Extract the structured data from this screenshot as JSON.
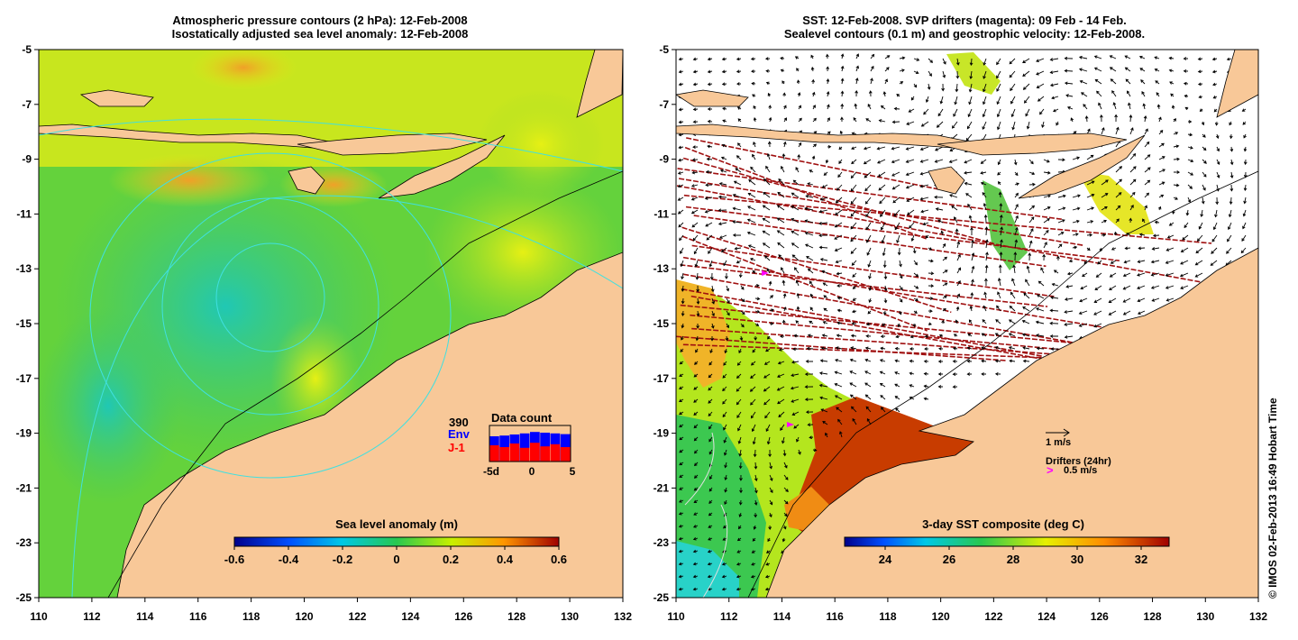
{
  "left_panel": {
    "title_line1": "Atmospheric pressure contours (2 hPa): 12-Feb-2008",
    "title_line2": "Isostatically adjusted sea level anomaly: 12-Feb-2008",
    "colorbar": {
      "label": "Sea level anomaly (m)",
      "ticks": [
        "-0.6",
        "-0.4",
        "-0.2",
        "0",
        "0.2",
        "0.4",
        "0.6"
      ]
    },
    "data_count": {
      "total": "390",
      "env_label": "Env",
      "j1_label": "J-1",
      "title": "Data count",
      "axis_ticks": [
        "-5d",
        "0",
        "5"
      ],
      "env_color": "#0000ff",
      "j1_color": "#ff0000",
      "env_fraction": [
        0.7,
        0.72,
        0.75,
        0.78,
        0.82,
        0.8,
        0.78,
        0.76
      ],
      "j1_fraction": [
        0.45,
        0.4,
        0.5,
        0.38,
        0.52,
        0.42,
        0.48,
        0.4
      ]
    }
  },
  "right_panel": {
    "title_line1": "SST: 12-Feb-2008. SVP drifters (magenta): 09 Feb - 14 Feb.",
    "title_line2": "Sealevel contours (0.1 m) and geostrophic velocity: 12-Feb-2008.",
    "colorbar": {
      "label": "3-day SST composite (deg C)",
      "ticks": [
        "24",
        "26",
        "28",
        "30",
        "32"
      ]
    },
    "legend": {
      "velocity_label": "1 m/s",
      "drifters_label": "Drifters (24hr)",
      "drifter_speed_label": "0.5 m/s",
      "drifter_marker": ">",
      "drifter_color": "#ff00ff"
    }
  },
  "axes": {
    "lat_ticks": [
      "-5",
      "-7",
      "-9",
      "-11",
      "-13",
      "-15",
      "-17",
      "-19",
      "-21",
      "-23",
      "-25"
    ],
    "lon_ticks": [
      "110",
      "112",
      "114",
      "116",
      "118",
      "120",
      "122",
      "124",
      "126",
      "128",
      "130",
      "132"
    ]
  },
  "credit": "© IMOS 02-Feb-2013 16:49 Hobart Time",
  "colors": {
    "land": "#f8c898",
    "contour": "#40e0e0",
    "track": "#a01010",
    "frame": "#000000"
  }
}
